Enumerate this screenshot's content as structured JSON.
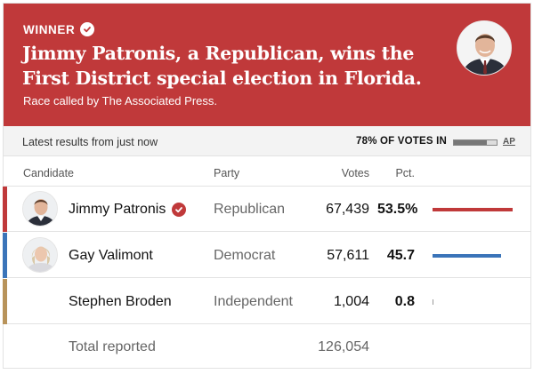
{
  "banner": {
    "winner_label": "WINNER",
    "headline": "Jimmy Patronis, a Republican, wins the First District special election in Florida.",
    "race_called": "Race called by The Associated Press.",
    "background_color": "#c0393a"
  },
  "status": {
    "latest": "Latest results from just now",
    "votes_in": "78% OF VOTES IN",
    "votes_in_fraction": 0.78,
    "source": "AP"
  },
  "table": {
    "headers": {
      "candidate": "Candidate",
      "party": "Party",
      "votes": "Votes",
      "pct": "Pct."
    },
    "rows": [
      {
        "name": "Jimmy Patronis",
        "winner": true,
        "party": "Republican",
        "votes": "67,439",
        "pct": "53.5%",
        "pct_value": 53.5,
        "color": "#c0393a",
        "has_photo": true
      },
      {
        "name": "Gay Valimont",
        "winner": false,
        "party": "Democrat",
        "votes": "57,611",
        "pct": "45.7",
        "pct_value": 45.7,
        "color": "#3a74b9",
        "has_photo": true
      },
      {
        "name": "Stephen Broden",
        "winner": false,
        "party": "Independent",
        "votes": "1,004",
        "pct": "0.8",
        "pct_value": 0.8,
        "color": "#b8935a",
        "has_photo": false
      }
    ],
    "total": {
      "label": "Total reported",
      "votes": "126,054"
    }
  }
}
